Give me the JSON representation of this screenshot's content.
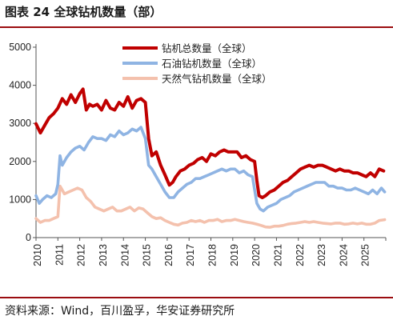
{
  "header": {
    "title": "图表 24 全球钻机数量（部）"
  },
  "footer": {
    "source": "资料来源：Wind，百川盈孚，华安证券研究所"
  },
  "colors": {
    "total": "#c00000",
    "oil": "#8fb4e3",
    "gas": "#f4c1ad",
    "rule": "#9b0d10"
  },
  "chart_data": {
    "type": "line",
    "title": "",
    "xlabel": "",
    "ylabel": "",
    "ylim": [
      0,
      5000
    ],
    "xlim": [
      2010,
      2026
    ],
    "y_ticks": [
      0,
      1000,
      2000,
      3000,
      4000,
      5000
    ],
    "x_ticks": [
      "2010",
      "2011",
      "2012",
      "2013",
      "2014",
      "2015",
      "2016",
      "2017",
      "2018",
      "2019",
      "2020",
      "2021",
      "2022",
      "2023",
      "2024",
      "2025"
    ],
    "legend_position": "top-right",
    "grid": false,
    "series": [
      {
        "name": "钻机总数量（全球）",
        "color": "#c00000",
        "x": [
          2010.0,
          2010.2,
          2010.4,
          2010.6,
          2010.8,
          2011.0,
          2011.2,
          2011.4,
          2011.6,
          2011.8,
          2012.0,
          2012.15,
          2012.3,
          2012.45,
          2012.6,
          2012.8,
          2013.0,
          2013.2,
          2013.4,
          2013.6,
          2013.8,
          2014.0,
          2014.2,
          2014.4,
          2014.6,
          2014.8,
          2015.0,
          2015.15,
          2015.3,
          2015.5,
          2015.7,
          2015.9,
          2016.1,
          2016.25,
          2016.4,
          2016.6,
          2016.8,
          2017.0,
          2017.2,
          2017.4,
          2017.6,
          2017.8,
          2018.0,
          2018.2,
          2018.4,
          2018.6,
          2018.8,
          2019.0,
          2019.2,
          2019.4,
          2019.6,
          2019.8,
          2020.0,
          2020.1,
          2020.2,
          2020.35,
          2020.5,
          2020.7,
          2020.9,
          2021.1,
          2021.3,
          2021.5,
          2021.7,
          2021.9,
          2022.1,
          2022.3,
          2022.5,
          2022.7,
          2022.9,
          2023.1,
          2023.3,
          2023.5,
          2023.7,
          2023.9,
          2024.1,
          2024.3,
          2024.5,
          2024.7,
          2024.9,
          2025.1,
          2025.3,
          2025.5,
          2025.7,
          2025.9
        ],
        "values": [
          2990,
          2750,
          2950,
          3150,
          3250,
          3400,
          3650,
          3500,
          3750,
          3550,
          3780,
          3900,
          3350,
          3500,
          3450,
          3500,
          3350,
          3600,
          3400,
          3350,
          3550,
          3450,
          3700,
          3400,
          3600,
          3650,
          3550,
          2600,
          2150,
          2250,
          1900,
          1650,
          1380,
          1450,
          1600,
          1750,
          1800,
          1900,
          1950,
          2050,
          2100,
          2000,
          2200,
          2150,
          2250,
          2300,
          2250,
          2250,
          2250,
          2100,
          2150,
          2050,
          2000,
          1500,
          1100,
          1050,
          1100,
          1200,
          1250,
          1350,
          1450,
          1500,
          1600,
          1700,
          1800,
          1850,
          1900,
          1850,
          1900,
          1900,
          1850,
          1800,
          1750,
          1800,
          1750,
          1750,
          1700,
          1700,
          1650,
          1600,
          1700,
          1600,
          1800,
          1750
        ]
      },
      {
        "name": "石油钻机数量（全球）",
        "color": "#8fb4e3",
        "x": [
          2010.0,
          2010.15,
          2010.3,
          2010.5,
          2010.7,
          2010.9,
          2011.0,
          2011.1,
          2011.2,
          2011.4,
          2011.6,
          2011.8,
          2012.0,
          2012.2,
          2012.4,
          2012.6,
          2012.8,
          2013.0,
          2013.2,
          2013.4,
          2013.6,
          2013.8,
          2014.0,
          2014.2,
          2014.4,
          2014.6,
          2014.8,
          2015.0,
          2015.15,
          2015.3,
          2015.5,
          2015.7,
          2015.9,
          2016.1,
          2016.3,
          2016.5,
          2016.7,
          2016.9,
          2017.1,
          2017.3,
          2017.5,
          2017.7,
          2017.9,
          2018.1,
          2018.3,
          2018.5,
          2018.7,
          2018.9,
          2019.1,
          2019.3,
          2019.5,
          2019.7,
          2019.9,
          2020.1,
          2020.25,
          2020.4,
          2020.6,
          2020.8,
          2021.0,
          2021.2,
          2021.4,
          2021.6,
          2021.8,
          2022.0,
          2022.2,
          2022.4,
          2022.6,
          2022.8,
          2023.0,
          2023.2,
          2023.4,
          2023.6,
          2023.8,
          2024.0,
          2024.2,
          2024.4,
          2024.6,
          2024.8,
          2025.0,
          2025.2,
          2025.4,
          2025.6,
          2025.8,
          2025.95
        ],
        "values": [
          1100,
          900,
          1000,
          1100,
          1050,
          1150,
          1400,
          2150,
          1900,
          2100,
          2250,
          2350,
          2400,
          2300,
          2500,
          2650,
          2600,
          2600,
          2550,
          2700,
          2650,
          2800,
          2700,
          2750,
          2850,
          2800,
          2900,
          2600,
          1900,
          1800,
          1600,
          1400,
          1200,
          1050,
          1050,
          1200,
          1300,
          1400,
          1450,
          1550,
          1550,
          1600,
          1650,
          1700,
          1750,
          1800,
          1750,
          1800,
          1800,
          1700,
          1750,
          1650,
          1600,
          900,
          750,
          700,
          800,
          850,
          900,
          1000,
          1050,
          1100,
          1200,
          1250,
          1300,
          1350,
          1400,
          1450,
          1450,
          1450,
          1350,
          1350,
          1300,
          1300,
          1250,
          1250,
          1300,
          1250,
          1200,
          1150,
          1250,
          1150,
          1300,
          1200
        ]
      },
      {
        "name": "天然气钻机数量（全球）",
        "color": "#f4c1ad",
        "x": [
          2010.0,
          2010.2,
          2010.4,
          2010.6,
          2010.8,
          2011.0,
          2011.1,
          2011.3,
          2011.5,
          2011.7,
          2011.9,
          2012.1,
          2012.3,
          2012.5,
          2012.7,
          2012.9,
          2013.1,
          2013.3,
          2013.5,
          2013.7,
          2013.9,
          2014.1,
          2014.3,
          2014.5,
          2014.7,
          2014.9,
          2015.1,
          2015.3,
          2015.5,
          2015.7,
          2015.9,
          2016.1,
          2016.3,
          2016.5,
          2016.7,
          2016.9,
          2017.1,
          2017.3,
          2017.5,
          2017.7,
          2017.9,
          2018.1,
          2018.3,
          2018.5,
          2018.7,
          2018.9,
          2019.1,
          2019.3,
          2019.5,
          2019.7,
          2019.9,
          2020.1,
          2020.3,
          2020.5,
          2020.7,
          2020.9,
          2021.1,
          2021.3,
          2021.5,
          2021.7,
          2021.9,
          2022.1,
          2022.3,
          2022.5,
          2022.7,
          2022.9,
          2023.1,
          2023.3,
          2023.5,
          2023.7,
          2023.9,
          2024.1,
          2024.3,
          2024.5,
          2024.7,
          2024.9,
          2025.1,
          2025.3,
          2025.5,
          2025.7,
          2025.95
        ],
        "values": [
          500,
          400,
          450,
          450,
          500,
          550,
          1350,
          1150,
          1200,
          1250,
          1300,
          1250,
          1050,
          950,
          800,
          750,
          700,
          750,
          800,
          700,
          700,
          750,
          800,
          700,
          780,
          750,
          650,
          550,
          500,
          520,
          450,
          400,
          350,
          330,
          380,
          400,
          450,
          420,
          450,
          400,
          450,
          450,
          480,
          420,
          450,
          450,
          480,
          450,
          420,
          400,
          380,
          350,
          320,
          280,
          270,
          300,
          300,
          320,
          350,
          370,
          380,
          400,
          420,
          400,
          420,
          400,
          380,
          370,
          360,
          380,
          380,
          350,
          360,
          380,
          360,
          380,
          350,
          350,
          380,
          450,
          470
        ]
      }
    ]
  }
}
